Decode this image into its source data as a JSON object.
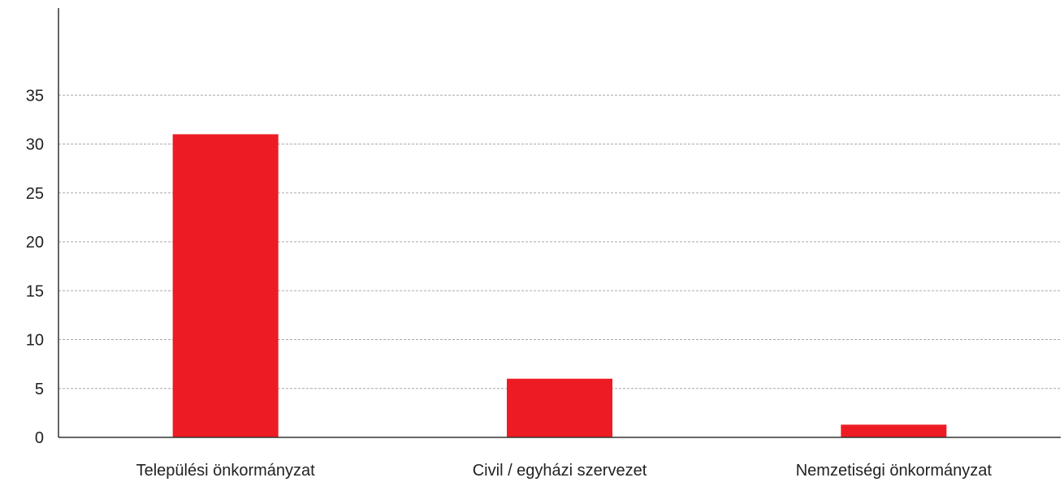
{
  "chart_data": {
    "type": "bar",
    "title": "",
    "xlabel": "",
    "ylabel": "",
    "categories": [
      "Települési önkormányzat",
      "Civil / egyházi szervezet",
      "Nemzetiségi önkormányzat"
    ],
    "values": [
      31,
      6,
      1.3
    ],
    "ylim": [
      0,
      40
    ],
    "yticks": [
      0,
      5,
      10,
      15,
      20,
      25,
      30,
      35
    ],
    "grid": true,
    "legend": "none",
    "colors": {
      "bar": "#ed1c24",
      "grid": "#aaaaaa",
      "axis": "#333333"
    }
  }
}
